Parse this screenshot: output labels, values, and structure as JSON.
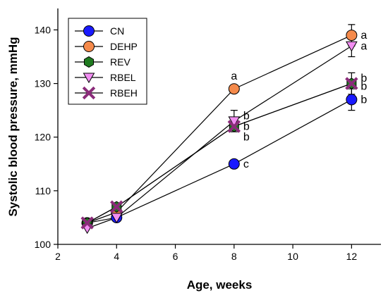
{
  "chart_data": {
    "type": "line",
    "xlabel": "Age, weeks",
    "ylabel": "Systolic blood pressure, mmHg",
    "xlim": [
      2,
      13
    ],
    "ylim": [
      100,
      144
    ],
    "xticks": [
      2,
      4,
      6,
      8,
      10,
      12
    ],
    "yticks": [
      100,
      110,
      120,
      130,
      140
    ],
    "legend_position": "top-left",
    "grid": false,
    "x": [
      3,
      4,
      8,
      12
    ],
    "series": [
      {
        "name": "CN",
        "marker": "circle",
        "color": "#1a1aff",
        "values": [
          104,
          105,
          115,
          127
        ],
        "errors": [
          0,
          0,
          0,
          2
        ]
      },
      {
        "name": "DEHP",
        "marker": "circle",
        "color": "#f58a4b",
        "values": [
          104,
          106,
          129,
          139
        ],
        "errors": [
          0,
          0,
          0,
          2
        ]
      },
      {
        "name": "REV",
        "marker": "hexagon",
        "color": "#1f7a1f",
        "values": [
          104,
          107,
          122,
          130
        ],
        "errors": [
          0,
          0,
          0,
          0
        ]
      },
      {
        "name": "RBEL",
        "marker": "triangle-down",
        "color": "#f28ef2",
        "values": [
          103,
          105,
          123,
          137
        ],
        "errors": [
          0,
          0,
          2,
          2
        ]
      },
      {
        "name": "RBEH",
        "marker": "x",
        "color": "#8b2c7a",
        "values": [
          104,
          107,
          122,
          130
        ],
        "errors": [
          0,
          0,
          0,
          2
        ]
      }
    ],
    "annotations": [
      {
        "x": 8,
        "y": 129,
        "text": "a",
        "position": "above"
      },
      {
        "x": 8,
        "y": 124,
        "text": "b",
        "position": "right"
      },
      {
        "x": 8,
        "y": 122,
        "text": "b",
        "position": "right"
      },
      {
        "x": 8,
        "y": 120,
        "text": "b",
        "position": "right"
      },
      {
        "x": 8,
        "y": 115,
        "text": "c",
        "position": "right"
      },
      {
        "x": 12,
        "y": 139,
        "text": "a",
        "position": "right"
      },
      {
        "x": 12,
        "y": 137,
        "text": "a",
        "position": "right"
      },
      {
        "x": 12,
        "y": 131,
        "text": "b",
        "position": "right"
      },
      {
        "x": 12,
        "y": 129.5,
        "text": "b",
        "position": "right"
      },
      {
        "x": 12,
        "y": 127,
        "text": "b",
        "position": "right"
      }
    ]
  }
}
